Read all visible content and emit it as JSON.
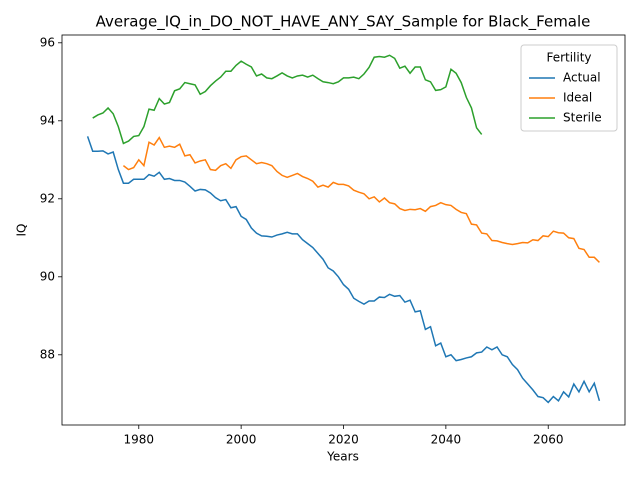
{
  "chart_data": {
    "type": "line",
    "title": "Average_IQ_in_DO_NOT_HAVE_ANY_SAY_Sample for Black_Female",
    "x_label": "Years",
    "y_label": "IQ",
    "xlim": [
      1965,
      2075
    ],
    "ylim": [
      86.2,
      96.2
    ],
    "xticks": [
      1980,
      2000,
      2020,
      2040,
      2060
    ],
    "yticks": [
      88,
      90,
      92,
      94,
      96
    ],
    "legend_title": "Fertility",
    "legend": "upper right",
    "grid": false,
    "x": [
      1970,
      1971,
      1972,
      1973,
      1974,
      1975,
      1976,
      1977,
      1978,
      1979,
      1980,
      1981,
      1982,
      1983,
      1984,
      1985,
      1986,
      1987,
      1988,
      1989,
      1990,
      1991,
      1992,
      1993,
      1994,
      1995,
      1996,
      1997,
      1998,
      1999,
      2000,
      2001,
      2002,
      2003,
      2004,
      2005,
      2006,
      2007,
      2008,
      2009,
      2010,
      2011,
      2012,
      2013,
      2014,
      2015,
      2016,
      2017,
      2018,
      2019,
      2020,
      2021,
      2022,
      2023,
      2024,
      2025,
      2026,
      2027,
      2028,
      2029,
      2030,
      2031,
      2032,
      2033,
      2034,
      2035,
      2036,
      2037,
      2038,
      2039,
      2040,
      2041,
      2042,
      2043,
      2044,
      2045,
      2046,
      2047,
      2048,
      2049,
      2050,
      2051,
      2052,
      2053,
      2054,
      2055,
      2056,
      2057,
      2058,
      2059,
      2060,
      2061,
      2062,
      2063,
      2064,
      2065,
      2066,
      2067,
      2068,
      2069,
      2070
    ],
    "series": [
      {
        "name": "Actual",
        "color": "#1f77b4",
        "values": [
          93.6,
          93.22,
          93.22,
          93.23,
          93.15,
          93.2,
          92.75,
          92.4,
          92.4,
          92.5,
          92.5,
          92.5,
          92.62,
          92.58,
          92.68,
          92.5,
          92.52,
          92.47,
          92.47,
          92.43,
          92.32,
          92.2,
          92.24,
          92.23,
          92.15,
          92.03,
          91.95,
          91.98,
          91.77,
          91.8,
          91.55,
          91.47,
          91.25,
          91.12,
          91.05,
          91.04,
          91.02,
          91.07,
          91.1,
          91.14,
          91.1,
          91.1,
          90.95,
          90.85,
          90.75,
          90.6,
          90.45,
          90.23,
          90.15,
          90.0,
          89.8,
          89.68,
          89.45,
          89.37,
          89.3,
          89.38,
          89.38,
          89.48,
          89.47,
          89.55,
          89.5,
          89.52,
          89.35,
          89.4,
          89.1,
          89.13,
          88.65,
          88.72,
          88.23,
          88.3,
          87.95,
          88.0,
          87.85,
          87.88,
          87.92,
          87.95,
          88.05,
          88.07,
          88.2,
          88.13,
          88.2,
          88.0,
          87.95,
          87.75,
          87.62,
          87.4,
          87.25,
          87.1,
          86.93,
          86.9,
          86.78,
          86.93,
          86.82,
          87.05,
          86.92,
          87.25,
          87.05,
          87.32,
          87.05,
          87.27,
          86.82
        ]
      },
      {
        "name": "Ideal",
        "color": "#ff7f0e",
        "values": [
          null,
          null,
          null,
          null,
          null,
          null,
          null,
          92.85,
          92.75,
          92.8,
          93.0,
          92.85,
          93.45,
          93.38,
          93.57,
          93.32,
          93.35,
          93.32,
          93.4,
          93.1,
          93.13,
          92.92,
          92.97,
          93.0,
          92.75,
          92.73,
          92.85,
          92.9,
          92.78,
          93.0,
          93.08,
          93.1,
          93.0,
          92.9,
          92.93,
          92.9,
          92.85,
          92.7,
          92.6,
          92.55,
          92.6,
          92.65,
          92.57,
          92.52,
          92.45,
          92.3,
          92.35,
          92.3,
          92.42,
          92.37,
          92.37,
          92.33,
          92.22,
          92.17,
          92.13,
          92.0,
          92.05,
          91.92,
          92.02,
          91.9,
          91.87,
          91.75,
          91.7,
          91.73,
          91.72,
          91.75,
          91.68,
          91.8,
          91.83,
          91.9,
          91.85,
          91.83,
          91.73,
          91.65,
          91.62,
          91.35,
          91.33,
          91.12,
          91.1,
          90.93,
          90.92,
          90.88,
          90.85,
          90.83,
          90.85,
          90.88,
          90.87,
          90.95,
          90.93,
          91.05,
          91.03,
          91.17,
          91.13,
          91.12,
          91.0,
          90.98,
          90.73,
          90.7,
          90.5,
          90.5,
          90.37
        ]
      },
      {
        "name": "Sterile",
        "color": "#2ca02c",
        "values": [
          null,
          94.07,
          94.15,
          94.2,
          94.33,
          94.18,
          93.85,
          93.42,
          93.48,
          93.6,
          93.62,
          93.85,
          94.3,
          94.27,
          94.57,
          94.43,
          94.47,
          94.77,
          94.82,
          94.98,
          94.95,
          94.92,
          94.68,
          94.75,
          94.9,
          95.02,
          95.12,
          95.27,
          95.27,
          95.42,
          95.53,
          95.45,
          95.38,
          95.15,
          95.2,
          95.1,
          95.08,
          95.15,
          95.23,
          95.15,
          95.1,
          95.15,
          95.17,
          95.12,
          95.17,
          95.08,
          95.0,
          94.98,
          94.95,
          95.0,
          95.1,
          95.1,
          95.12,
          95.08,
          95.2,
          95.37,
          95.63,
          95.65,
          95.63,
          95.68,
          95.6,
          95.35,
          95.4,
          95.22,
          95.38,
          95.38,
          95.05,
          95.0,
          94.78,
          94.8,
          94.87,
          95.32,
          95.22,
          94.98,
          94.6,
          94.33,
          93.82,
          93.65,
          null,
          null,
          null,
          null,
          null,
          null,
          null,
          null,
          null,
          null,
          null,
          null,
          null,
          null,
          null,
          null,
          null,
          null,
          null,
          null,
          null,
          null,
          null
        ]
      }
    ]
  }
}
